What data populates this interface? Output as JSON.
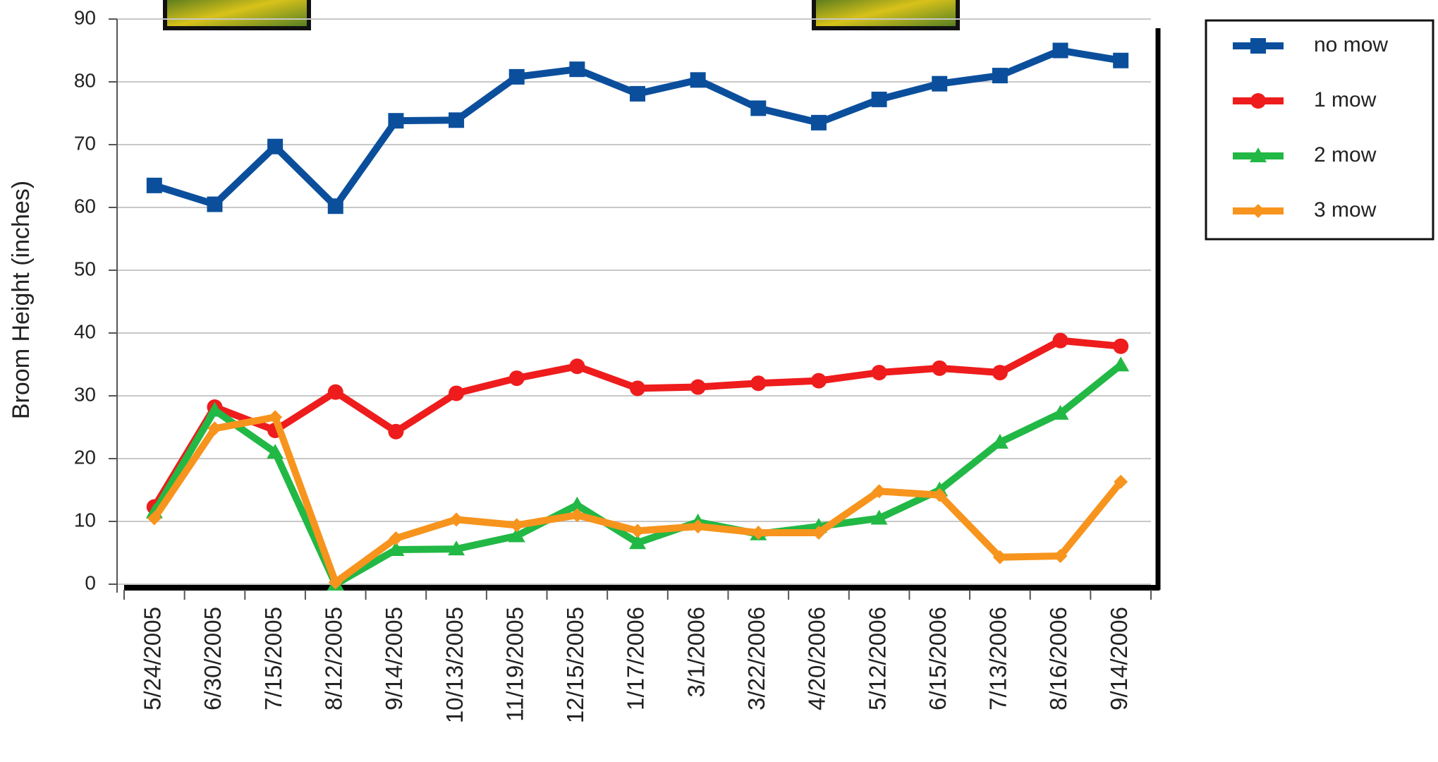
{
  "chart_data": {
    "type": "line",
    "y_label": "Broom Height (inches)",
    "categories": [
      "5/24/2005",
      "6/30/2005",
      "7/15/2005",
      "8/12/2005",
      "9/14/2005",
      "10/13/2005",
      "11/19/2005",
      "12/15/2005",
      "1/17/2006",
      "3/1/2006",
      "3/22/2006",
      "4/20/2006",
      "5/12/2006",
      "6/15/2006",
      "7/13/2006",
      "8/16/2006",
      "9/14/2006"
    ],
    "series": [
      {
        "name": "no mow",
        "color": "#0b4f9c",
        "marker": "square",
        "values": [
          63.5,
          60.5,
          69.7,
          60.2,
          73.8,
          73.9,
          80.8,
          82,
          78.1,
          80.3,
          75.8,
          73.5,
          77.2,
          79.7,
          81,
          85,
          83.4
        ]
      },
      {
        "name": "1 mow",
        "color": "#ee1c1c",
        "marker": "circle",
        "values": [
          12.3,
          28.2,
          24.5,
          30.6,
          24.3,
          30.4,
          32.8,
          34.7,
          31.2,
          31.4,
          32,
          32.4,
          33.7,
          34.4,
          33.7,
          38.8,
          37.9
        ]
      },
      {
        "name": "2 mow",
        "color": "#22b845",
        "marker": "triangle",
        "values": [
          11.5,
          27.7,
          21,
          0,
          5.5,
          5.6,
          7.7,
          12.6,
          6.6,
          9.9,
          8,
          9.2,
          10.5,
          15,
          22.6,
          27.2,
          34.9
        ]
      },
      {
        "name": "3 mow",
        "color": "#f7941d",
        "marker": "diamond",
        "values": [
          10.5,
          24.8,
          26.6,
          0.3,
          7.3,
          10.3,
          9.4,
          11,
          8.5,
          9.2,
          8.2,
          8.2,
          14.8,
          14.2,
          4.3,
          4.5,
          16.3
        ]
      }
    ],
    "ylim": [
      0,
      90
    ],
    "yticks": [
      0,
      10,
      20,
      30,
      40,
      50,
      60,
      70,
      80,
      90
    ],
    "grid": true,
    "legend": "top-right"
  }
}
